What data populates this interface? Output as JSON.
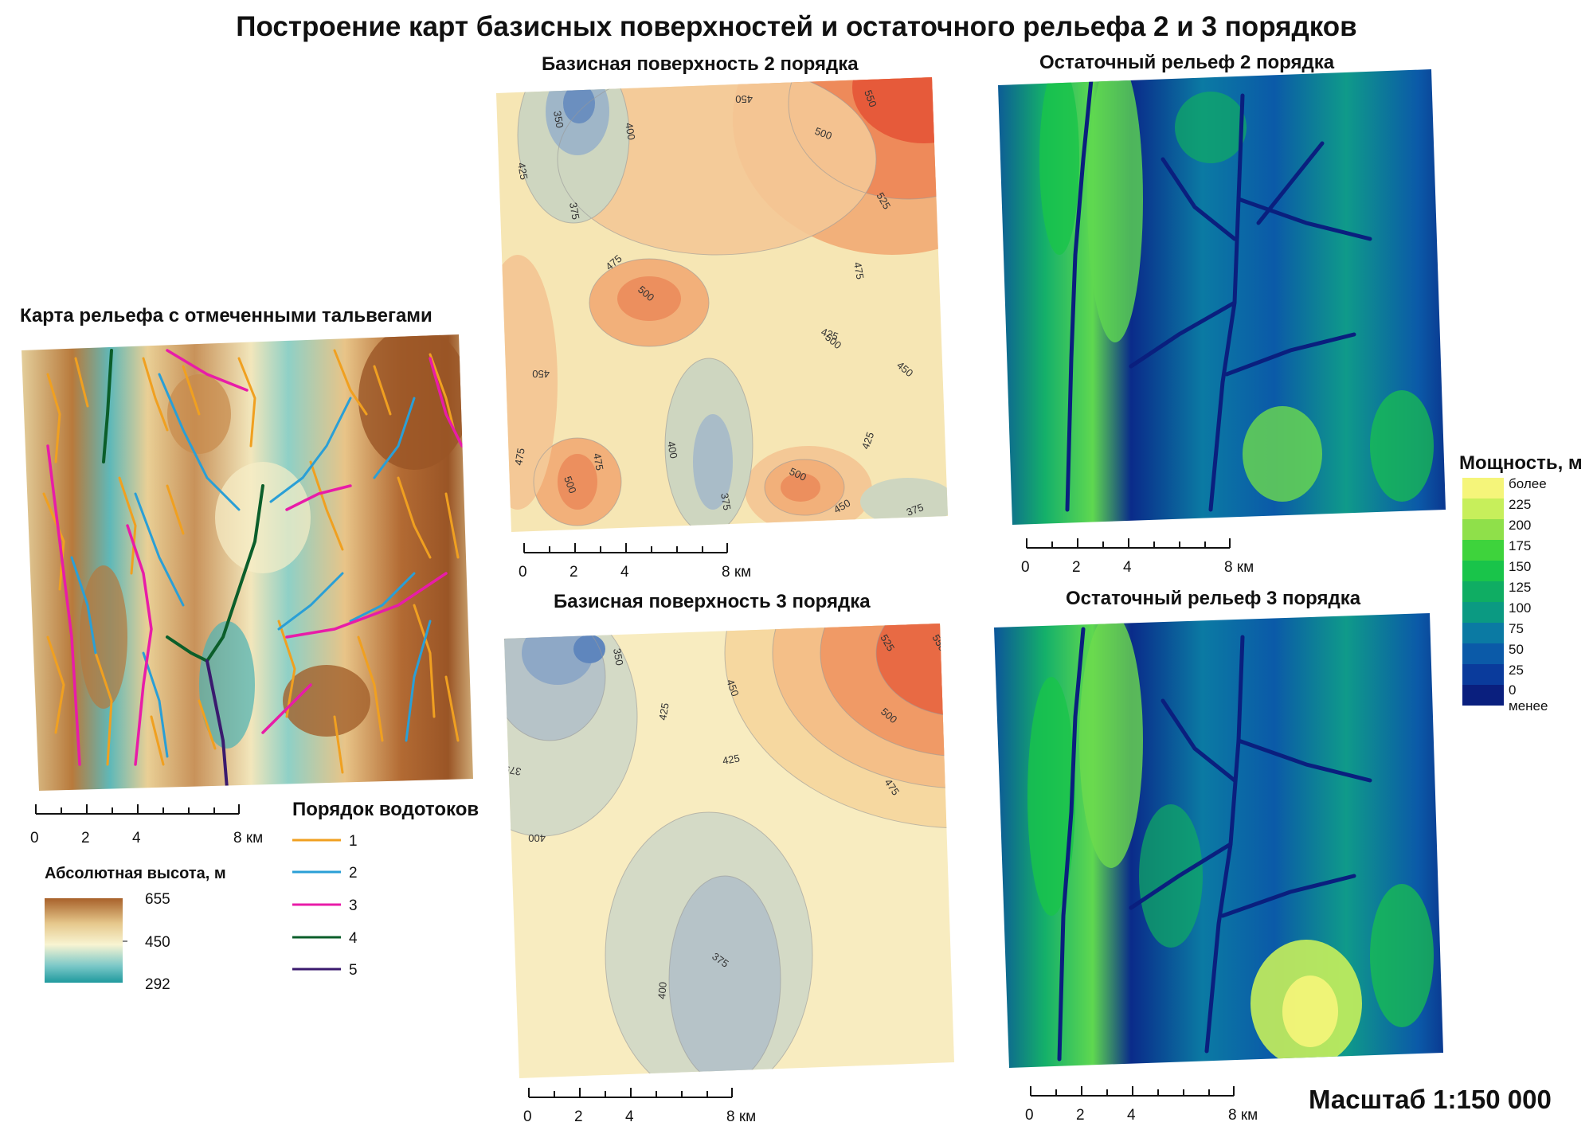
{
  "title": "Построение карт базисных поверхностей и остаточного рельефа 2 и 3 порядков",
  "panels": {
    "relief": {
      "title": "Карта рельефа с отмеченными тальвегами",
      "elevation_legend": {
        "title": "Абсолютная высота, м",
        "max": "655",
        "mid": "450",
        "min": "292",
        "colors": [
          "#a8612a",
          "#e6c88c",
          "#f8f4d2",
          "#7cc8c8",
          "#1f9a9e"
        ]
      },
      "stream_legend": {
        "title": "Порядок водотоков",
        "items": [
          {
            "label": "1",
            "color": "#f0a020"
          },
          {
            "label": "2",
            "color": "#2a9fd6"
          },
          {
            "label": "3",
            "color": "#e81ca8"
          },
          {
            "label": "4",
            "color": "#0b5e2a"
          },
          {
            "label": "5",
            "color": "#3a1a6e"
          }
        ]
      }
    },
    "base2": {
      "title": "Базисная поверхность 2 порядка",
      "contour_labels": [
        "350",
        "400",
        "450",
        "425",
        "375",
        "475",
        "500",
        "550",
        "500",
        "525",
        "475",
        "500",
        "425",
        "450",
        "450",
        "475",
        "500",
        "475",
        "400",
        "375",
        "500",
        "425",
        "450",
        "375"
      ]
    },
    "base3": {
      "title": "Базисная поверхность 3 порядка",
      "contour_labels": [
        "350",
        "425",
        "450",
        "525",
        "550",
        "500",
        "475",
        "425",
        "375",
        "400",
        "375",
        "400"
      ]
    },
    "resid2": {
      "title": "Остаточный рельеф 2 порядка"
    },
    "resid3": {
      "title": "Остаточный рельеф 3 порядка"
    }
  },
  "thickness_legend": {
    "title": "Мощность, м",
    "top_label": "более",
    "labels": [
      "225",
      "200",
      "175",
      "150",
      "125",
      "100",
      "75",
      "50",
      "25",
      "0"
    ],
    "bottom_label": "менее",
    "colors": [
      "#f5f57a",
      "#c7ef5b",
      "#8fe04a",
      "#3ed33c",
      "#19c44a",
      "#0fad63",
      "#0b9a82",
      "#0b7aa3",
      "#0b5aa8",
      "#0a3b9c",
      "#0a1f7e"
    ]
  },
  "scalebar": {
    "ticks": [
      "0",
      "2",
      "4",
      "8 км"
    ]
  },
  "scale_text": "Масштаб 1:150 000"
}
